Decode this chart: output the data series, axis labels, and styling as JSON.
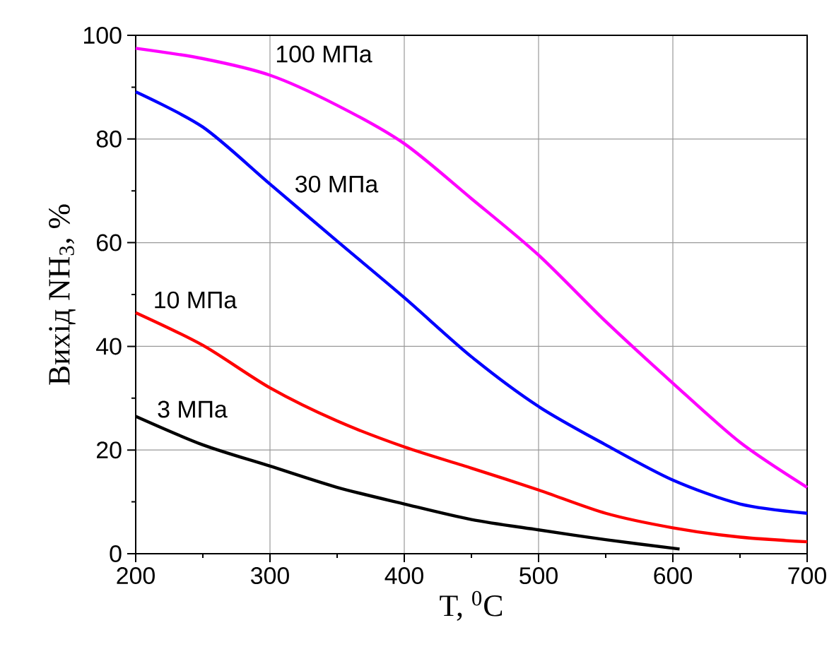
{
  "chart_data": {
    "type": "line",
    "xlabel": "T, $^{0}$C",
    "ylabel": "Вихід NH$_{3}$, %",
    "xlim": [
      200,
      700
    ],
    "ylim": [
      0,
      100
    ],
    "xticks": [
      200,
      300,
      400,
      500,
      600,
      700
    ],
    "yticks": [
      0,
      20,
      40,
      60,
      80,
      100
    ],
    "grid": true,
    "marker": "none",
    "line_style": "solid",
    "series": [
      {
        "name": "100 МПа",
        "color": "#ff00ff",
        "x": [
          200,
          250,
          300,
          350,
          400,
          450,
          500,
          550,
          600,
          650,
          700
        ],
        "values": [
          97.5,
          95.5,
          92.3,
          86.5,
          79.1,
          68.5,
          57.6,
          44.8,
          32.9,
          21.5,
          12.8
        ]
      },
      {
        "name": "30 МПа",
        "color": "#0000ff",
        "x": [
          200,
          250,
          300,
          350,
          400,
          450,
          500,
          550,
          600,
          650,
          700
        ],
        "values": [
          89.1,
          82.3,
          71.3,
          60.3,
          49.4,
          38,
          28.4,
          21,
          14.2,
          9.6,
          7.8
        ]
      },
      {
        "name": "10 МПа",
        "color": "#ff0000",
        "x": [
          200,
          250,
          300,
          350,
          400,
          450,
          500,
          550,
          600,
          650,
          700
        ],
        "values": [
          46.5,
          40.2,
          32,
          25.6,
          20.6,
          16.5,
          12.3,
          7.8,
          5,
          3.2,
          2.3
        ]
      },
      {
        "name": "3 МПа",
        "color": "#000000",
        "x": [
          200,
          250,
          300,
          350,
          400,
          450,
          500,
          550,
          605
        ],
        "values": [
          26.5,
          21,
          16.9,
          12.8,
          9.6,
          6.6,
          4.6,
          2.7,
          0.9
        ]
      }
    ]
  }
}
